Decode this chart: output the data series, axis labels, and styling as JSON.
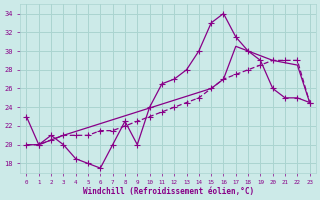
{
  "bg_color": "#cceae8",
  "grid_color": "#aad4d0",
  "line_color": "#880088",
  "xlim": [
    -0.5,
    23.5
  ],
  "ylim": [
    17,
    35
  ],
  "yticks": [
    18,
    20,
    22,
    24,
    26,
    28,
    30,
    32,
    34
  ],
  "xticks": [
    0,
    1,
    2,
    3,
    4,
    5,
    6,
    7,
    8,
    9,
    10,
    11,
    12,
    13,
    14,
    15,
    16,
    17,
    18,
    19,
    20,
    21,
    22,
    23
  ],
  "xlabel": "Windchill (Refroidissement éolien,°C)",
  "line1_x": [
    0,
    1,
    2,
    3,
    4,
    5,
    6,
    7,
    8,
    9,
    10,
    11,
    12,
    13,
    14,
    15,
    16,
    17,
    18,
    19,
    20,
    21,
    22,
    23
  ],
  "line1_y": [
    23,
    20,
    21,
    20,
    18.5,
    18,
    17.5,
    20,
    22.5,
    20,
    24,
    26.5,
    27,
    28,
    30,
    33,
    34,
    31.5,
    30,
    29,
    26,
    25,
    25,
    24.5
  ],
  "line2_x": [
    0,
    1,
    2,
    3,
    4,
    5,
    6,
    7,
    8,
    9,
    10,
    11,
    12,
    13,
    14,
    15,
    16,
    17,
    18,
    19,
    20,
    21,
    22,
    23
  ],
  "line2_y": [
    20,
    20,
    20.5,
    21,
    21,
    21,
    21.5,
    21.5,
    22,
    22.5,
    23,
    23.5,
    24,
    24.5,
    25,
    26,
    27,
    27.5,
    28,
    28.5,
    29,
    29,
    29,
    24.5
  ],
  "line3_x": [
    0,
    1,
    3,
    15,
    16,
    17,
    20,
    22,
    23
  ],
  "line3_y": [
    20,
    20,
    21,
    26,
    27,
    30.5,
    29,
    28.5,
    24.5
  ]
}
